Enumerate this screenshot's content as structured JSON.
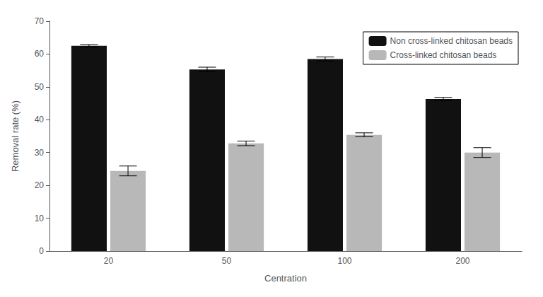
{
  "chart_data": {
    "type": "bar",
    "categories": [
      "20",
      "50",
      "100",
      "200"
    ],
    "series": [
      {
        "name": "Non cross-linked chitosan beads",
        "color": "#111111",
        "values": [
          62.5,
          55.3,
          58.5,
          46.3
        ],
        "errors": [
          0.4,
          0.7,
          0.6,
          0.5
        ]
      },
      {
        "name": "Cross-linked chitosan beads",
        "color": "#b8b8b8",
        "values": [
          24.4,
          32.8,
          35.4,
          30.0
        ],
        "errors": [
          1.5,
          0.7,
          0.6,
          1.5
        ]
      }
    ],
    "xlabel": "Centration",
    "ylabel": "Removal rate (%)",
    "ylim": [
      0,
      70
    ],
    "yticks": [
      0,
      10,
      20,
      30,
      40,
      50,
      60,
      70
    ],
    "grid": false,
    "legend": "upper right"
  }
}
